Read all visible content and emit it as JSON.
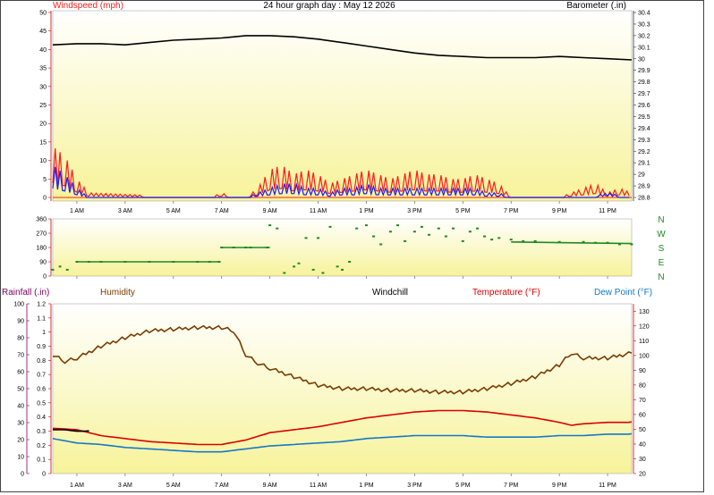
{
  "title": "24 hour graph day : May 12 2026",
  "colors": {
    "wind_speed": "#ff1a1a",
    "wind_gust": "#1a1aff",
    "barometer": "#000000",
    "direction": "#1f8a1f",
    "humidity": "#7a3c00",
    "temperature": "#dd0000",
    "dew_point": "#1478c8",
    "windchill": "#000000",
    "rain": "#7a0060",
    "plot_top": "#ffffff",
    "plot_bottom": "#f7f39a"
  },
  "x_ticks": [
    "1 AM",
    "3 AM",
    "5 AM",
    "7 AM",
    "9 AM",
    "11 AM",
    "1 PM",
    "3 PM",
    "5 PM",
    "7 PM",
    "9 PM",
    "11 PM"
  ],
  "chart_data": [
    {
      "type": "line",
      "panel": "wind",
      "left_axis_label": "Windspeed (mph)",
      "right_axis_label": "Barometer (.in)",
      "left_ticks": [
        "0",
        "5",
        "10",
        "15",
        "20",
        "25",
        "30",
        "35",
        "40",
        "45",
        "50"
      ],
      "right_ticks": [
        "28.8",
        "28.9",
        "29",
        "29.1",
        "29.2",
        "29.3",
        "29.4",
        "29.5",
        "29.6",
        "29.7",
        "29.8",
        "29.9",
        "30",
        "30.1",
        "30.2",
        "30.3",
        "30.4"
      ],
      "ylim_left": [
        0,
        50
      ],
      "ylim_right": [
        28.8,
        30.4
      ],
      "series": [
        {
          "name": "Barometer",
          "axis": "right",
          "x_hours": [
            0,
            1,
            2,
            3,
            4,
            5,
            6,
            7,
            8,
            9,
            10,
            11,
            12,
            13,
            14,
            15,
            16,
            17,
            18,
            19,
            20,
            21,
            22,
            23,
            24
          ],
          "values": [
            30.12,
            30.13,
            30.13,
            30.12,
            30.14,
            30.16,
            30.17,
            30.18,
            30.2,
            30.2,
            30.19,
            30.17,
            30.14,
            30.11,
            30.08,
            30.05,
            30.03,
            30.02,
            30.01,
            30.01,
            30.01,
            30.02,
            30.01,
            30.0,
            29.99
          ]
        },
        {
          "name": "Wind Speed",
          "axis": "left",
          "x_hours": [
            0,
            0.5,
            1,
            1.5,
            6,
            6.5,
            7,
            7.5,
            8,
            8.5,
            9,
            9.5,
            10,
            10.5,
            11,
            11.5,
            12,
            12.5,
            13,
            13.5,
            14,
            14.5,
            15,
            15.5,
            16,
            16.5,
            17,
            17.5,
            18,
            18.5,
            19,
            21,
            21.5,
            22,
            22.5,
            23,
            23.5,
            24
          ],
          "values": [
            11,
            9,
            4,
            1,
            0,
            0,
            1,
            0,
            0,
            2,
            6,
            7,
            5,
            6,
            5,
            3,
            4,
            5,
            6,
            5,
            4,
            5,
            6,
            5,
            5,
            4,
            4,
            5,
            4,
            3,
            0,
            0,
            1,
            2,
            3,
            1,
            2,
            1
          ]
        },
        {
          "name": "Wind Gust",
          "axis": "left",
          "x_hours": [
            0,
            0.5,
            1,
            1.5,
            6,
            7,
            8,
            8.5,
            9,
            9.5,
            10,
            10.5,
            11,
            11.5,
            12,
            12.5,
            13,
            13.5,
            14,
            14.5,
            15,
            15.5,
            16,
            16.5,
            17,
            17.5,
            18,
            18.5,
            19,
            21,
            22,
            23,
            24
          ],
          "values": [
            7,
            5,
            2,
            0,
            0,
            0,
            0,
            1,
            2,
            3,
            3,
            2,
            2,
            1,
            2,
            2,
            3,
            2,
            2,
            2,
            2,
            2,
            2,
            2,
            2,
            2,
            1,
            1,
            0,
            0,
            0,
            1,
            0
          ]
        }
      ]
    },
    {
      "type": "scatter",
      "panel": "wind_direction",
      "ticks": [
        "0",
        "90",
        "180",
        "270",
        "360"
      ],
      "compass_labels": [
        "N",
        "W",
        "S",
        "E",
        "N"
      ],
      "ylim": [
        0,
        360
      ],
      "series": [
        {
          "name": "Wind Direction",
          "x_hours": [
            0,
            0.3,
            0.6,
            1,
            1.5,
            2,
            3,
            4,
            5,
            6,
            6.5,
            6.9,
            7,
            7.5,
            8,
            8.2,
            8.9,
            9,
            9.3,
            9.6,
            10,
            10.2,
            10.5,
            10.8,
            11,
            11.2,
            11.5,
            11.8,
            12,
            12.3,
            12.6,
            13,
            13.3,
            13.6,
            14,
            14.3,
            14.6,
            15,
            15.3,
            15.6,
            16,
            16.3,
            16.6,
            17,
            17.3,
            17.6,
            17.9,
            18.2,
            18.5,
            19,
            19.5,
            20,
            21,
            22,
            22.5,
            23,
            23.5,
            24
          ],
          "values": [
            40,
            60,
            40,
            90,
            90,
            90,
            90,
            90,
            90,
            90,
            90,
            90,
            180,
            180,
            180,
            180,
            180,
            320,
            300,
            20,
            60,
            80,
            240,
            40,
            240,
            20,
            310,
            60,
            40,
            90,
            300,
            320,
            250,
            200,
            280,
            320,
            220,
            280,
            310,
            260,
            300,
            250,
            300,
            220,
            280,
            300,
            250,
            230,
            240,
            230,
            220,
            220,
            215,
            215,
            210,
            210,
            200,
            200
          ]
        }
      ]
    },
    {
      "type": "line",
      "panel": "thermo",
      "rain_axis_label": "Rainfall (.in)",
      "labels": {
        "humidity": "Humidity",
        "windchill": "Windchill",
        "temperature": "Temperature (°F)",
        "dew_point": "Dew Point (°F)"
      },
      "left_ticks_pct": [
        "0",
        "10",
        "20",
        "30",
        "40",
        "50",
        "60",
        "70",
        "80",
        "90",
        "100"
      ],
      "left_ticks_rain": [
        "0",
        "0.1",
        "0.2",
        "0.3",
        "0.4",
        "0.5",
        "0.6",
        "0.7",
        "0.8",
        "0.9",
        "1",
        "1.1",
        "1.2"
      ],
      "right_ticks_temp": [
        "20",
        "30",
        "40",
        "50",
        "60",
        "70",
        "80",
        "90",
        "100",
        "110",
        "120",
        "130"
      ],
      "ylim_pct": [
        0,
        100
      ],
      "ylim_rain": [
        0,
        1.2
      ],
      "ylim_temp": [
        20,
        135
      ],
      "series": [
        {
          "name": "Humidity",
          "axis": "pct",
          "x_hours": [
            0,
            0.5,
            1,
            2,
            3,
            4,
            5,
            6,
            7,
            7.5,
            8,
            8.5,
            9,
            10,
            11,
            12,
            13,
            14,
            15,
            16,
            17,
            18,
            19,
            20,
            21,
            21.5,
            22,
            23,
            24
          ],
          "values": [
            70,
            66,
            68,
            75,
            80,
            84,
            85,
            86,
            86,
            84,
            70,
            65,
            62,
            57,
            52,
            50,
            50,
            49,
            49,
            48,
            48,
            50,
            53,
            57,
            64,
            71,
            68,
            68,
            71
          ]
        },
        {
          "name": "Temperature",
          "axis": "temp",
          "x_hours": [
            0,
            1,
            2,
            3,
            4,
            5,
            6,
            7,
            8,
            9,
            10,
            11,
            12,
            13,
            14,
            15,
            16,
            17,
            18,
            19,
            20,
            21,
            21.5,
            22,
            23,
            24
          ],
          "values": [
            51,
            50,
            46,
            44,
            42,
            41,
            40,
            40,
            43,
            48,
            50,
            52,
            55,
            58,
            60,
            62,
            63,
            63,
            62,
            60,
            58,
            55,
            53,
            54,
            55,
            55
          ]
        },
        {
          "name": "Windchill",
          "axis": "temp",
          "x_hours": [
            0,
            0.5,
            1,
            1.5
          ],
          "values": [
            50,
            50,
            49,
            49
          ]
        },
        {
          "name": "Dew Point",
          "axis": "temp",
          "x_hours": [
            0,
            1,
            2,
            3,
            4,
            5,
            6,
            7,
            8,
            9,
            10,
            11,
            12,
            13,
            14,
            15,
            16,
            17,
            18,
            19,
            20,
            21,
            22,
            23,
            24
          ],
          "values": [
            44,
            41,
            40,
            38,
            37,
            36,
            35,
            35,
            37,
            39,
            40,
            41,
            42,
            44,
            45,
            46,
            46,
            46,
            45,
            45,
            45,
            46,
            46,
            47,
            47
          ]
        }
      ]
    }
  ]
}
